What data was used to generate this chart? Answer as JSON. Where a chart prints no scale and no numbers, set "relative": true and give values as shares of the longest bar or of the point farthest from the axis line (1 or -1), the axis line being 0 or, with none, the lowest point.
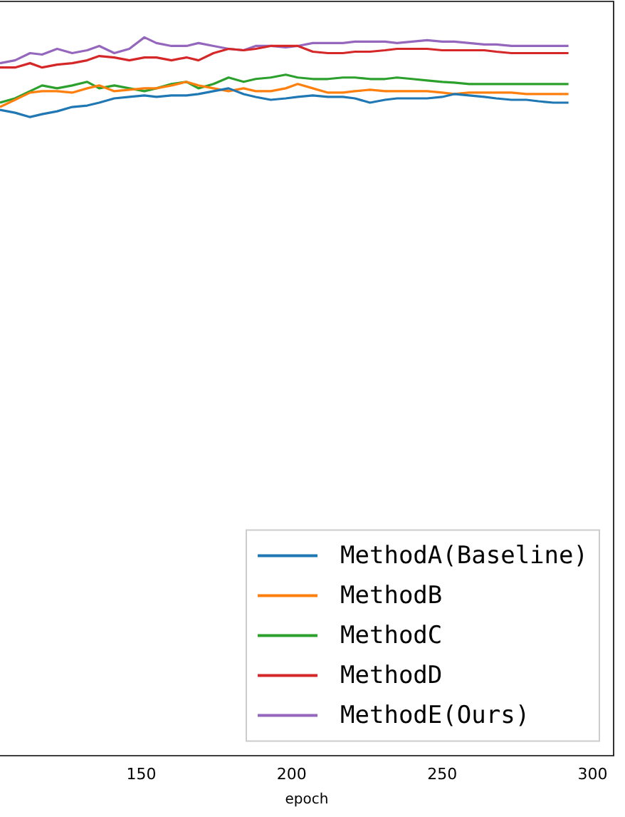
{
  "chart_data": {
    "type": "line",
    "xlabel": "epoch",
    "relative": true,
    "xlim": [
      103,
      307
    ],
    "xticks": [
      150,
      200,
      250,
      300
    ],
    "grid": false,
    "legend": "bottom right",
    "x": [
      103,
      108,
      113,
      117,
      122,
      127,
      132,
      136,
      141,
      146,
      151,
      155,
      160,
      165,
      169,
      174,
      179,
      184,
      188,
      193,
      198,
      202,
      207,
      212,
      217,
      221,
      226,
      231,
      235,
      240,
      245,
      250,
      254,
      259,
      264,
      268,
      273,
      278,
      282,
      287,
      292
    ],
    "series": [
      {
        "name": "MethodA(Baseline)",
        "color": "#1f77b4",
        "values": [
          0.899,
          0.895,
          0.889,
          0.893,
          0.897,
          0.903,
          0.905,
          0.909,
          0.915,
          0.917,
          0.919,
          0.917,
          0.919,
          0.919,
          0.921,
          0.925,
          0.929,
          0.921,
          0.917,
          0.913,
          0.915,
          0.917,
          0.919,
          0.917,
          0.917,
          0.915,
          0.909,
          0.913,
          0.915,
          0.915,
          0.915,
          0.917,
          0.921,
          0.919,
          0.917,
          0.915,
          0.913,
          0.913,
          0.911,
          0.909,
          0.909
        ]
      },
      {
        "name": "MethodB",
        "color": "#ff7f0e",
        "values": [
          0.903,
          0.913,
          0.923,
          0.925,
          0.925,
          0.923,
          0.929,
          0.933,
          0.925,
          0.927,
          0.929,
          0.929,
          0.933,
          0.938,
          0.933,
          0.929,
          0.925,
          0.929,
          0.925,
          0.925,
          0.929,
          0.935,
          0.929,
          0.923,
          0.923,
          0.925,
          0.927,
          0.925,
          0.925,
          0.925,
          0.925,
          0.923,
          0.921,
          0.923,
          0.923,
          0.923,
          0.923,
          0.921,
          0.921,
          0.921,
          0.921
        ]
      },
      {
        "name": "MethodC",
        "color": "#2ca02c",
        "values": [
          0.909,
          0.915,
          0.925,
          0.933,
          0.929,
          0.933,
          0.938,
          0.929,
          0.933,
          0.929,
          0.925,
          0.929,
          0.935,
          0.938,
          0.929,
          0.935,
          0.944,
          0.938,
          0.942,
          0.944,
          0.948,
          0.944,
          0.942,
          0.942,
          0.944,
          0.944,
          0.942,
          0.942,
          0.944,
          0.942,
          0.94,
          0.938,
          0.937,
          0.935,
          0.935,
          0.935,
          0.935,
          0.935,
          0.935,
          0.935,
          0.935
        ]
      },
      {
        "name": "MethodD",
        "color": "#d62728",
        "values": [
          0.958,
          0.958,
          0.964,
          0.958,
          0.962,
          0.964,
          0.968,
          0.974,
          0.972,
          0.968,
          0.972,
          0.972,
          0.968,
          0.972,
          0.968,
          0.978,
          0.984,
          0.982,
          0.984,
          0.988,
          0.988,
          0.988,
          0.98,
          0.978,
          0.978,
          0.98,
          0.98,
          0.982,
          0.984,
          0.984,
          0.984,
          0.982,
          0.982,
          0.982,
          0.982,
          0.98,
          0.978,
          0.978,
          0.978,
          0.978,
          0.978
        ]
      },
      {
        "name": "MethodE(Ours)",
        "color": "#9467bd",
        "values": [
          0.964,
          0.968,
          0.978,
          0.976,
          0.984,
          0.978,
          0.982,
          0.988,
          0.978,
          0.984,
          1.0,
          0.992,
          0.988,
          0.988,
          0.992,
          0.988,
          0.984,
          0.982,
          0.988,
          0.988,
          0.986,
          0.988,
          0.992,
          0.992,
          0.992,
          0.994,
          0.994,
          0.994,
          0.992,
          0.994,
          0.996,
          0.994,
          0.994,
          0.992,
          0.99,
          0.99,
          0.988,
          0.988,
          0.988,
          0.988,
          0.988
        ]
      }
    ]
  }
}
